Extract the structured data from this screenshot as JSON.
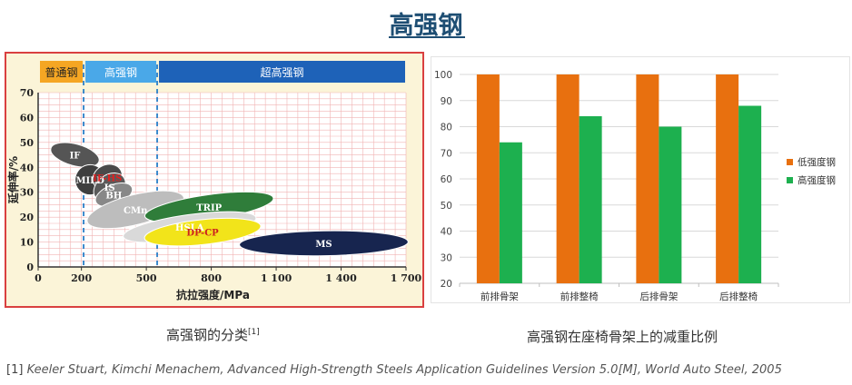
{
  "page": {
    "title": "高强钢",
    "caption_left": "高强钢的分类",
    "caption_left_ref": "[1]",
    "caption_right": "高强钢在座椅骨架上的减重比例",
    "reference_num": "[1]",
    "reference_text": "Keeler Stuart, Kimchi Menachem, Advanced High-Strength Steels Application Guidelines Version 5.0[M], World Auto Steel, 2005"
  },
  "chart_data": [
    {
      "type": "scatter",
      "subtype": "region-map",
      "xlabel": "抗拉强度/MPa",
      "ylabel": "延伸率/%",
      "xlim": [
        0,
        1700
      ],
      "ylim": [
        0,
        70
      ],
      "x_ticks": [
        0,
        200,
        500,
        800,
        1100,
        1400,
        1700
      ],
      "x_tick_labels": [
        "0",
        "200",
        "500",
        "800",
        "1 100",
        "1 400",
        "1 700"
      ],
      "y_ticks": [
        0,
        10,
        20,
        30,
        40,
        50,
        60,
        70
      ],
      "grid": true,
      "bands": [
        {
          "label": "普通钢",
          "from": 0,
          "to": 210,
          "color": "#f5a623"
        },
        {
          "label": "高强钢",
          "from": 210,
          "to": 550,
          "color": "#4aa8e8"
        },
        {
          "label": "超高强钢",
          "from": 550,
          "to": 1700,
          "color": "#1e62b8"
        }
      ],
      "dividers": [
        210,
        550
      ],
      "regions": [
        {
          "label": "IF",
          "cx": 170,
          "cy": 45,
          "rx": 50,
          "ry": 10,
          "rot": -75,
          "color": "#555555",
          "label_color": "#ffffff"
        },
        {
          "label": "MILD",
          "cx": 240,
          "cy": 35,
          "rx": 70,
          "ry": 6,
          "rot": -55,
          "color": "#3f3f3f",
          "label_color": "#ffffff"
        },
        {
          "label": "IF-HS",
          "cx": 320,
          "cy": 36,
          "rx": 70,
          "ry": 5,
          "rot": -25,
          "color": "#4a4a4a",
          "label_color": "#e02020"
        },
        {
          "label": "IS",
          "cx": 330,
          "cy": 32,
          "rx": 80,
          "ry": 5,
          "rot": -35,
          "color": "#5a5a5a",
          "label_color": "#ffffff"
        },
        {
          "label": "BH",
          "cx": 350,
          "cy": 29,
          "rx": 90,
          "ry": 4,
          "rot": -22,
          "color": "#888888",
          "label_color": "#ffffff"
        },
        {
          "label": "CMn",
          "cx": 450,
          "cy": 23,
          "rx": 230,
          "ry": 6,
          "rot": -14,
          "color": "#bdbdbd",
          "label_color": "#ffffff"
        },
        {
          "label": "TRIP",
          "cx": 790,
          "cy": 24,
          "rx": 300,
          "ry": 5,
          "rot": -8,
          "color": "#2f7d3a",
          "label_color": "#ffffff"
        },
        {
          "label": "HSLA",
          "cx": 700,
          "cy": 16,
          "rx": 310,
          "ry": 5,
          "rot": -8,
          "color": "#d9d9d9",
          "label_color": "#ffffff"
        },
        {
          "label": "DP-CP",
          "cx": 760,
          "cy": 14,
          "rx": 270,
          "ry": 5,
          "rot": -6,
          "color": "#f2e41a",
          "label_color": "#cc2020"
        },
        {
          "label": "MS",
          "cx": 1320,
          "cy": 9.5,
          "rx": 390,
          "ry": 5,
          "rot": -1,
          "color": "#17254f",
          "label_color": "#ffffff"
        }
      ]
    },
    {
      "type": "bar",
      "categories": [
        "前排骨架",
        "前排整椅",
        "后排骨架",
        "后排整椅"
      ],
      "series": [
        {
          "name": "低强度钢",
          "values": [
            100,
            100,
            100,
            100
          ],
          "color": "#e8700f"
        },
        {
          "name": "高强度钢",
          "values": [
            74,
            84,
            80,
            88
          ],
          "color": "#1db04f"
        }
      ],
      "ylim": [
        20,
        100
      ],
      "y_ticks": [
        20,
        30,
        40,
        50,
        60,
        70,
        80,
        90,
        100
      ],
      "grid": true,
      "legend": "right"
    }
  ]
}
